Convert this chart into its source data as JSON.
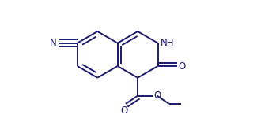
{
  "bond_color": "#1a1a6e",
  "bg_color": "#ffffff",
  "line_width": 1.4,
  "dbo": 0.055,
  "bl": 0.72,
  "figsize": [
    3.3,
    1.55
  ],
  "dpi": 100,
  "xlim": [
    -1.6,
    4.2
  ],
  "ylim": [
    -2.0,
    1.8
  ]
}
